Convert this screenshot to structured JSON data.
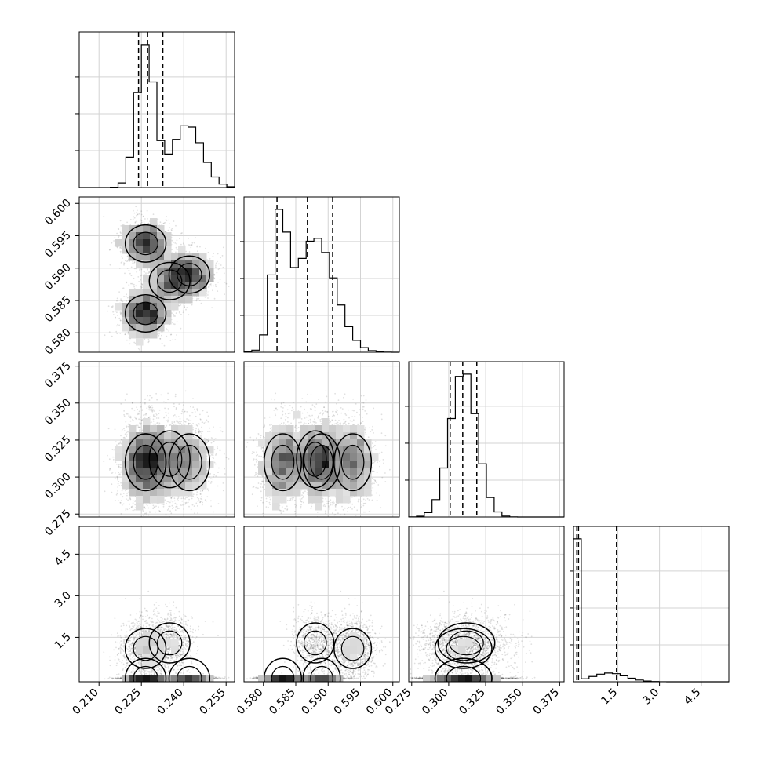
{
  "chart_data": {
    "type": "corner",
    "grid": true,
    "parameters": [
      {
        "range": [
          0.203,
          0.258
        ],
        "ticks": [
          0.21,
          0.225,
          0.24,
          0.255
        ],
        "tick_labels": [
          "0.210",
          "0.225",
          "0.240",
          "0.255"
        ],
        "quantiles": [
          0.224,
          0.2272,
          0.2326
        ],
        "modes": [
          {
            "center": 0.2265,
            "sigma": 0.0032,
            "weight": 0.58
          },
          {
            "center": 0.2413,
            "sigma": 0.0052,
            "weight": 0.42
          }
        ]
      },
      {
        "range": [
          0.577,
          0.601
        ],
        "ticks": [
          0.58,
          0.585,
          0.59,
          0.595,
          0.6
        ],
        "tick_labels": [
          "0.580",
          "0.585",
          "0.590",
          "0.595",
          "0.600"
        ],
        "quantiles": [
          0.5821,
          0.5868,
          0.5907
        ],
        "modes": [
          {
            "center": 0.5825,
            "sigma": 0.0012,
            "weight": 0.3
          },
          {
            "center": 0.588,
            "sigma": 0.003,
            "weight": 0.7
          }
        ]
      },
      {
        "range": [
          0.273,
          0.378
        ],
        "ticks": [
          0.275,
          0.3,
          0.325,
          0.35,
          0.375
        ],
        "tick_labels": [
          "0.275",
          "0.300",
          "0.325",
          "0.350",
          "0.375"
        ],
        "quantiles": [
          0.301,
          0.3095,
          0.319
        ],
        "modes": [
          {
            "center": 0.31,
            "sigma": 0.009,
            "weight": 1.0
          }
        ]
      },
      {
        "range": [
          -0.1,
          5.5
        ],
        "ticks": [
          1.5,
          3.0,
          4.5
        ],
        "tick_labels": [
          "1.5",
          "3.0",
          "4.5"
        ],
        "quantiles": [
          0.02,
          0.08,
          1.45
        ],
        "modes": [
          {
            "center": 0.02,
            "sigma": 0.04,
            "weight": 0.55
          },
          {
            "center": 1.2,
            "sigma": 0.6,
            "weight": 0.45
          }
        ]
      }
    ],
    "joint_clusters": [
      {
        "a": 0.2265,
        "b": 0.583,
        "c": 0.31,
        "d": 0.02,
        "weight": 0.3
      },
      {
        "a": 0.2265,
        "b": 0.5938,
        "c": 0.31,
        "d": 1.1,
        "weight": 0.28
      },
      {
        "a": 0.242,
        "b": 0.589,
        "c": 0.31,
        "d": 0.02,
        "weight": 0.25
      },
      {
        "a": 0.235,
        "b": 0.588,
        "c": 0.312,
        "d": 1.3,
        "weight": 0.17
      }
    ]
  }
}
